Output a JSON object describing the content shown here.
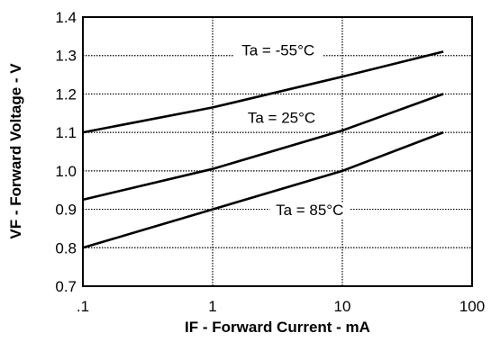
{
  "chart_data": {
    "type": "line",
    "xlabel": "IF - Forward Current - mA",
    "ylabel": "VF - Forward Voltage - V",
    "x_scale": "log",
    "xlim": [
      0.1,
      100
    ],
    "ylim": [
      0.7,
      1.4
    ],
    "x_ticks": [
      0.1,
      1,
      10,
      100
    ],
    "x_tick_labels": [
      ".1",
      "1",
      "10",
      "100"
    ],
    "y_ticks": [
      0.7,
      0.8,
      0.9,
      1.0,
      1.1,
      1.2,
      1.3,
      1.4
    ],
    "y_tick_labels": [
      "0.7",
      "0.8",
      "0.9",
      "1.0",
      "1.1",
      "1.2",
      "1.3",
      "1.4"
    ],
    "grid": true,
    "series": [
      {
        "name": "Ta = -55°C",
        "x": [
          0.1,
          1,
          10,
          60
        ],
        "y": [
          1.1,
          1.165,
          1.245,
          1.31
        ]
      },
      {
        "name": "Ta = 25°C",
        "x": [
          0.1,
          1,
          10,
          60
        ],
        "y": [
          0.925,
          1.005,
          1.105,
          1.2
        ]
      },
      {
        "name": "Ta = 85°C",
        "x": [
          0.1,
          1,
          10,
          60
        ],
        "y": [
          0.8,
          0.9,
          1.0,
          1.1
        ]
      }
    ],
    "annotations": [
      {
        "text": "Ta = -55°C",
        "x": 3.2,
        "y": 1.3
      },
      {
        "text": "Ta = 25°C",
        "x": 3.4,
        "y": 1.125
      },
      {
        "text": "Ta = 85°C",
        "x": 5.6,
        "y": 0.885
      }
    ]
  }
}
